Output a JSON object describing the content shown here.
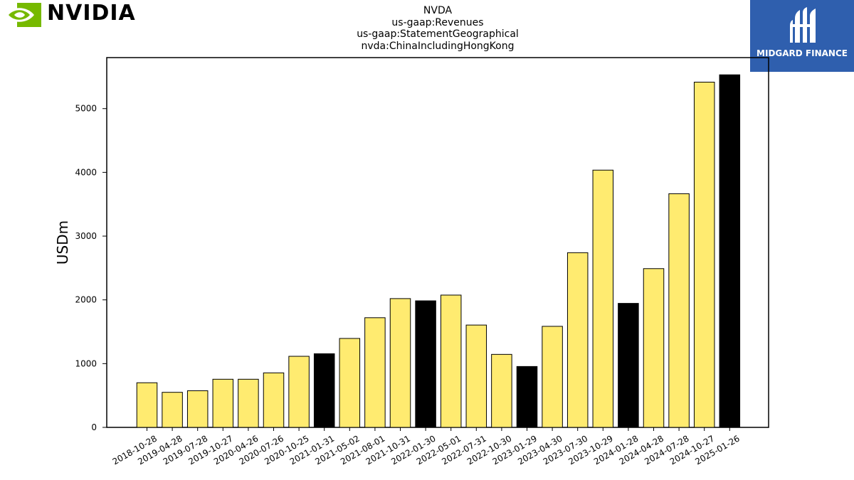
{
  "header": {
    "brand_logo": "NVIDIA",
    "watermark_logo": "MIDGARD FINANCE",
    "title_lines": [
      "NVDA",
      "us-gaap:Revenues",
      "us-gaap:StatementGeographical",
      "nvda:ChinaIncludingHongKong"
    ]
  },
  "colors": {
    "bar_default": "#ffeb70",
    "bar_highlight": "#000000",
    "nvidia_green": "#76b900",
    "midgard_blue": "#2f5fae"
  },
  "chart_data": {
    "type": "bar",
    "title": "NVDA\nus-gaap:Revenues\nus-gaap:StatementGeographical\nnvda:ChinaIncludingHongKong",
    "xlabel": "",
    "ylabel": "USDm",
    "ylim": [
      0,
      5800
    ],
    "yticks": [
      0,
      1000,
      2000,
      3000,
      4000,
      5000
    ],
    "grid": false,
    "categories": [
      "2018-10-28",
      "2019-04-28",
      "2019-07-28",
      "2019-10-27",
      "2020-04-26",
      "2020-07-26",
      "2020-10-25",
      "2021-01-31",
      "2021-05-02",
      "2021-08-01",
      "2021-10-31",
      "2022-01-30",
      "2022-05-01",
      "2022-07-31",
      "2022-10-30",
      "2023-01-29",
      "2023-04-30",
      "2023-07-30",
      "2023-10-29",
      "2024-01-28",
      "2024-04-28",
      "2024-07-28",
      "2024-10-27",
      "2025-01-26"
    ],
    "values": [
      700,
      550,
      575,
      755,
      755,
      855,
      1115,
      1155,
      1395,
      1720,
      2020,
      1985,
      2075,
      1605,
      1145,
      955,
      1585,
      2740,
      4035,
      1945,
      2490,
      3665,
      5415,
      5530
    ],
    "highlight": [
      false,
      false,
      false,
      false,
      false,
      false,
      false,
      true,
      false,
      false,
      false,
      true,
      false,
      false,
      false,
      true,
      false,
      false,
      false,
      true,
      false,
      false,
      false,
      true
    ]
  }
}
